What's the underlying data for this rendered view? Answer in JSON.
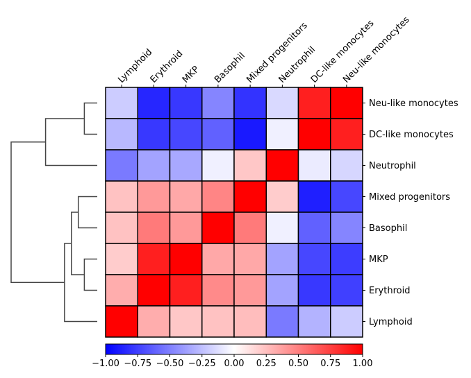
{
  "chart_data": {
    "type": "heatmap",
    "title": "",
    "xlabel": "",
    "ylabel": "",
    "columns": [
      "Lymphoid",
      "Erythroid",
      "MKP",
      "Basophil",
      "Mixed progenitors",
      "Neutrophil",
      "DC-like monocytes",
      "Neu-like monocytes"
    ],
    "rows": [
      "Neu-like monocytes",
      "DC-like monocytes",
      "Neutrophil",
      "Mixed progenitors",
      "Basophil",
      "MKP",
      "Erythroid",
      "Lymphoid"
    ],
    "values": [
      [
        -0.2,
        -0.85,
        -0.78,
        -0.48,
        -0.8,
        -0.15,
        0.88,
        1.0
      ],
      [
        -0.28,
        -0.78,
        -0.72,
        -0.62,
        -0.9,
        -0.06,
        1.0,
        0.88
      ],
      [
        -0.52,
        -0.36,
        -0.34,
        -0.06,
        0.22,
        1.0,
        -0.08,
        -0.16
      ],
      [
        0.24,
        0.4,
        0.34,
        0.48,
        1.0,
        0.2,
        -0.88,
        -0.72
      ],
      [
        0.24,
        0.52,
        0.4,
        1.0,
        0.52,
        -0.06,
        -0.62,
        -0.48
      ],
      [
        0.2,
        0.88,
        1.0,
        0.34,
        0.34,
        -0.36,
        -0.72,
        -0.76
      ],
      [
        0.32,
        1.0,
        0.88,
        0.46,
        0.4,
        -0.36,
        -0.78,
        -0.75
      ],
      [
        1.0,
        0.32,
        0.22,
        0.24,
        0.26,
        -0.52,
        -0.3,
        -0.2
      ]
    ],
    "colorbar": {
      "range": [
        -1.0,
        1.0
      ],
      "ticks": [
        "−1.00",
        "−0.75",
        "−0.50",
        "−0.25",
        "0.00",
        "0.25",
        "0.50",
        "0.75",
        "1.00"
      ],
      "colors": [
        "#0000ff",
        "#ffffff",
        "#ff0000"
      ]
    },
    "dendrogram": {
      "side": "left",
      "color": "#444444",
      "merges": [
        {
          "a": 0,
          "b": 1,
          "height": 0.15
        },
        {
          "a": 3,
          "b": 4,
          "height": 0.22
        },
        {
          "a": 5,
          "b": 6,
          "height": 0.15
        },
        {
          "a": "m1",
          "b": "m2",
          "height": 0.3
        },
        {
          "a": "m0",
          "b": 2,
          "height": 0.6
        },
        {
          "a": "m3",
          "b": 7,
          "height": 0.38
        },
        {
          "a": "m4",
          "b": "m5",
          "height": 1.0
        }
      ]
    }
  }
}
